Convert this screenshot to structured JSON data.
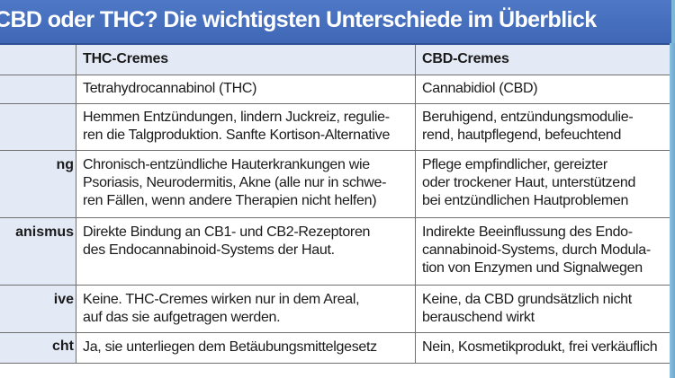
{
  "title": "CBD oder THC? Die wichtigsten Unterschiede im Überblick",
  "colors": {
    "title_bg": "#4a72c0",
    "label_bg": "#e3eaf6",
    "grid": "#6f6f6f"
  },
  "table": {
    "header": {
      "label": "",
      "thc": "THC-Cremes",
      "cbd": "CBD-Cremes"
    },
    "rows": [
      {
        "label": "",
        "thc": "Tetrahydrocannabinol (THC)",
        "cbd": "Cannabidiol (CBD)"
      },
      {
        "label": "",
        "thc": "Hemmen Entzündungen, lindern Juckreiz, regulie-\nren die Talgproduktion. Sanfte Kortison-Alternative",
        "cbd": "Beruhigend, entzündungsmodulie-\nrend, hautpflegend, befeuchtend"
      },
      {
        "label": "ng",
        "thc": "Chronisch-entzündliche Hauterkrankungen wie\nPsoriasis, Neurodermitis, Akne (alle nur in schwe-\nren Fällen, wenn andere Therapien nicht helfen)",
        "cbd": "Pflege empfindlicher, gereizter\noder trockener Haut, unterstützend\nbei entzündlichen Hautproblemen"
      },
      {
        "label": "anismus",
        "thc": "Direkte Bindung an CB1- und CB2-Rezeptoren\ndes Endocannabinoid-Systems der Haut.",
        "cbd": "Indirekte Beeinflussung des Endo-\ncannabinoid-Systems, durch Modula-\ntion von Enzymen und Signalwegen"
      },
      {
        "label": "ive",
        "thc": "Keine. THC-Cremes wirken nur in dem Areal,\nauf das sie aufgetragen werden.",
        "cbd": "Keine, da CBD grundsätzlich nicht\nberauschend wirkt"
      },
      {
        "label": "cht",
        "thc": "Ja, sie unterliegen dem Betäubungsmittelgesetz",
        "cbd": "Nein, Kosmetikprodukt, frei verkäuflich"
      }
    ]
  }
}
